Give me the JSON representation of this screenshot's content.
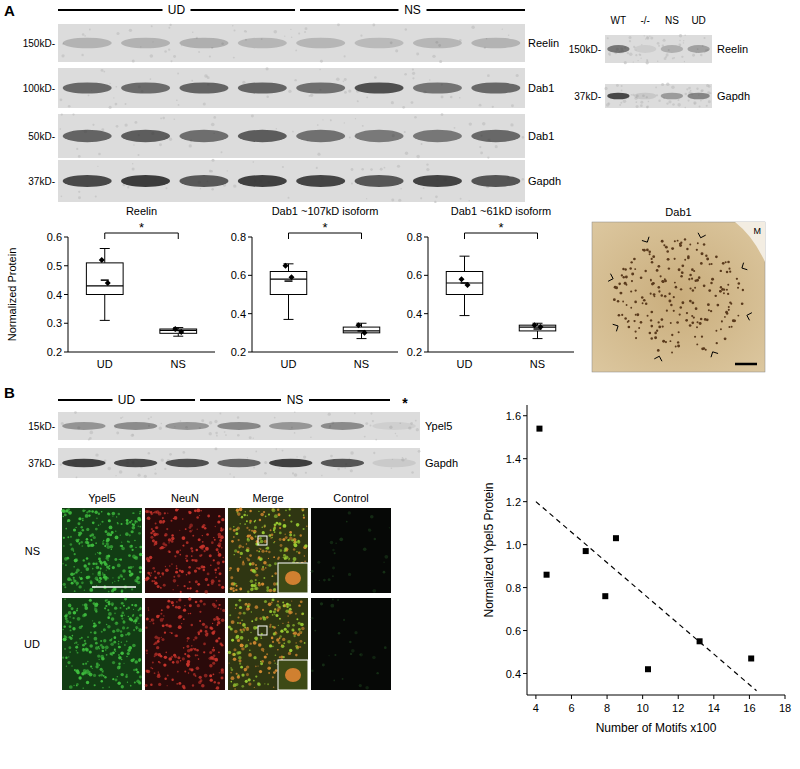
{
  "figure": {
    "panel_labels": [
      "A",
      "B"
    ]
  },
  "blots": [
    {
      "groups": [
        "UD",
        "NS"
      ],
      "rows": [
        {
          "size": "150kD-",
          "protein": "Reelin"
        },
        {
          "size": "100kD-",
          "protein": "Dab1"
        },
        {
          "size": "50kD-",
          "protein": "Dab1"
        },
        {
          "size": "37kD-",
          "protein": "Gapdh"
        }
      ]
    },
    {
      "lanes": [
        "WT",
        "-/-",
        "NS",
        "UD"
      ],
      "rows": [
        {
          "size": "150kD-",
          "protein": "Reelin"
        },
        {
          "size": "37kD-",
          "protein": "Gapdh"
        }
      ]
    },
    {
      "groups": [
        "UD",
        "NS"
      ],
      "marker": "*",
      "rows": [
        {
          "size": "15kD-",
          "protein": "Ypel5"
        },
        {
          "size": "37kD-",
          "protein": "Gapdh"
        }
      ]
    }
  ],
  "images": [
    {
      "title": "Dab1",
      "corner_label": "M"
    },
    {
      "columns": [
        "Ypel5",
        "NeuN",
        "Merge",
        "Control"
      ],
      "rows": [
        "NS",
        "UD"
      ]
    }
  ],
  "chart_data": [
    {
      "type": "box",
      "title": "Reelin",
      "y_label": "Normalized Protein",
      "categories": [
        "UD",
        "NS"
      ],
      "boxes": [
        {
          "min": 0.31,
          "q1": 0.4,
          "median": 0.43,
          "q3": 0.51,
          "max": 0.56,
          "mean": 0.45,
          "points": [
            0.52,
            0.44
          ]
        },
        {
          "min": 0.255,
          "q1": 0.265,
          "median": 0.275,
          "q3": 0.28,
          "max": 0.285,
          "mean": 0.275,
          "points": [
            0.28,
            0.27
          ]
        }
      ],
      "annotation": "*",
      "ylim": [
        0.2,
        0.6
      ],
      "yticks": [
        0.2,
        0.3,
        0.4,
        0.5,
        0.6
      ]
    },
    {
      "type": "box",
      "title": "Dab1 ~107kD isoform",
      "categories": [
        "UD",
        "NS"
      ],
      "boxes": [
        {
          "min": 0.37,
          "q1": 0.5,
          "median": 0.58,
          "q3": 0.62,
          "max": 0.66,
          "mean": 0.57,
          "points": [
            0.65,
            0.59
          ]
        },
        {
          "min": 0.27,
          "q1": 0.3,
          "median": 0.31,
          "q3": 0.33,
          "max": 0.35,
          "mean": 0.31,
          "points": [
            0.34,
            0.3
          ]
        }
      ],
      "annotation": "*",
      "ylim": [
        0.2,
        0.8
      ],
      "yticks": [
        0.2,
        0.4,
        0.6,
        0.8
      ]
    },
    {
      "type": "box",
      "title": "Dab1 ~61kD isoform",
      "categories": [
        "UD",
        "NS"
      ],
      "boxes": [
        {
          "min": 0.39,
          "q1": 0.5,
          "median": 0.56,
          "q3": 0.62,
          "max": 0.7,
          "mean": 0.56,
          "points": [
            0.58,
            0.55
          ]
        },
        {
          "min": 0.27,
          "q1": 0.31,
          "median": 0.33,
          "q3": 0.34,
          "max": 0.35,
          "mean": 0.32,
          "points": [
            0.34,
            0.33
          ]
        }
      ],
      "annotation": "*",
      "ylim": [
        0.2,
        0.8
      ],
      "yticks": [
        0.2,
        0.4,
        0.6,
        0.8
      ]
    },
    {
      "type": "scatter",
      "x_label": "Number of Motifs x100",
      "y_label": "Normalized Ypel5 Protein",
      "series": [
        {
          "x": [
            4.2,
            4.6,
            6.8,
            7.9,
            8.5,
            10.3,
            13.2,
            16.1
          ],
          "values": [
            1.54,
            0.86,
            0.97,
            0.76,
            1.03,
            0.42,
            0.55,
            0.47
          ],
          "marker": "square",
          "color": "#000000"
        },
        {
          "type": "line",
          "x": [
            4.0,
            16.4
          ],
          "values": [
            1.2,
            0.32
          ],
          "line_style": "dashed",
          "color": "#000000"
        }
      ],
      "xlim": [
        3.5,
        18
      ],
      "xticks": [
        4,
        6,
        8,
        10,
        12,
        14,
        16,
        18
      ],
      "ylim": [
        0.3,
        1.65
      ],
      "yticks": [
        0.4,
        0.6,
        0.8,
        {
          "value": 1,
          "label": "1.0"
        },
        1.2,
        1.4,
        1.6
      ]
    }
  ]
}
